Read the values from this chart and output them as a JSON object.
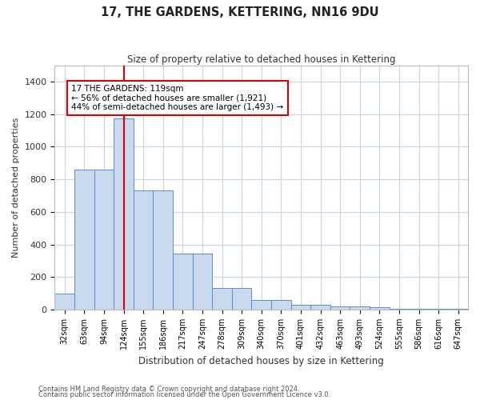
{
  "title": "17, THE GARDENS, KETTERING, NN16 9DU",
  "subtitle": "Size of property relative to detached houses in Kettering",
  "xlabel": "Distribution of detached houses by size in Kettering",
  "ylabel": "Number of detached properties",
  "bar_color": "#c9d9ee",
  "bar_edge_color": "#5b8cc8",
  "categories": [
    "32sqm",
    "63sqm",
    "94sqm",
    "124sqm",
    "155sqm",
    "186sqm",
    "217sqm",
    "247sqm",
    "278sqm",
    "309sqm",
    "340sqm",
    "370sqm",
    "401sqm",
    "432sqm",
    "463sqm",
    "493sqm",
    "524sqm",
    "555sqm",
    "586sqm",
    "616sqm",
    "647sqm"
  ],
  "values": [
    100,
    860,
    860,
    1175,
    730,
    730,
    345,
    345,
    130,
    130,
    60,
    60,
    30,
    30,
    20,
    20,
    15,
    5,
    5,
    5,
    5
  ],
  "ylim": [
    0,
    1500
  ],
  "yticks": [
    0,
    200,
    400,
    600,
    800,
    1000,
    1200,
    1400
  ],
  "property_line_x": 3,
  "annotation_text": "17 THE GARDENS: 119sqm\n← 56% of detached houses are smaller (1,921)\n44% of semi-detached houses are larger (1,493) →",
  "annotation_box_color": "#ffffff",
  "annotation_box_edgecolor": "#dd0000",
  "vline_color": "#dd0000",
  "footer1": "Contains HM Land Registry data © Crown copyright and database right 2024.",
  "footer2": "Contains public sector information licensed under the Open Government Licence v3.0.",
  "background_color": "#ffffff",
  "grid_color": "#c8d4e3"
}
